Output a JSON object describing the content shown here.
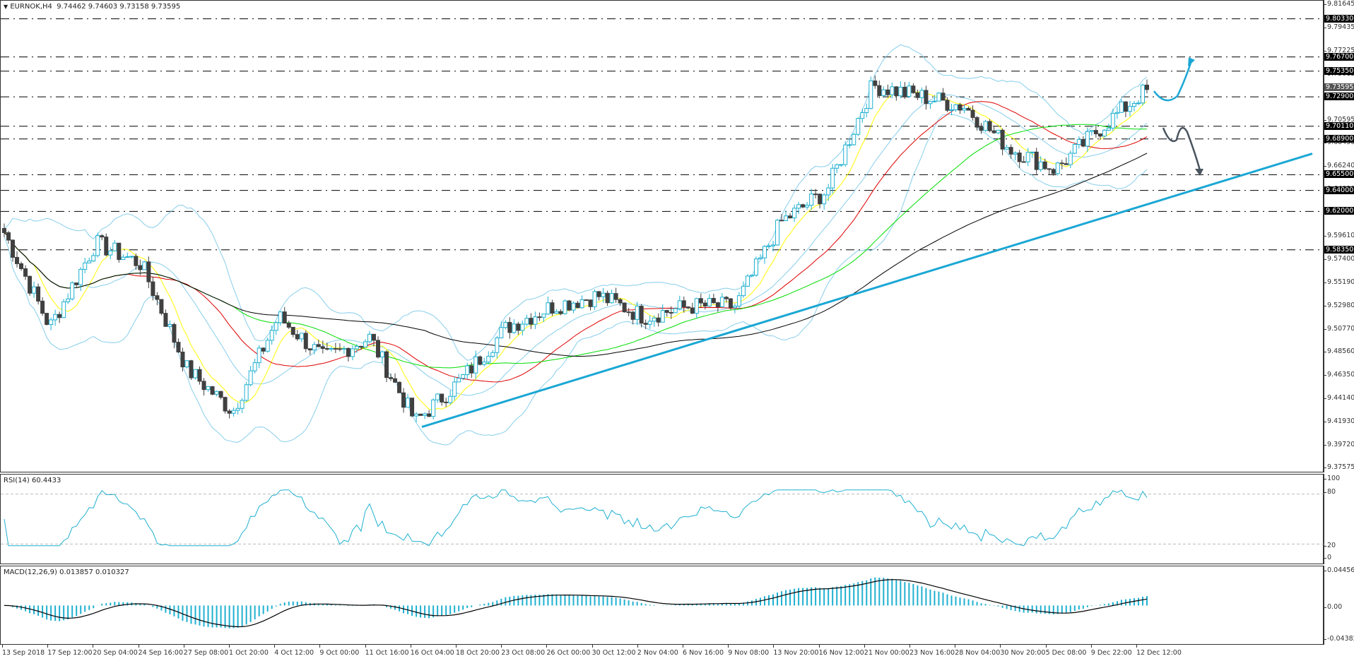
{
  "header": {
    "symbol": "EURNOK,H4",
    "ohlc": "9.74462 9.74603 9.73158 9.73595",
    "title_full": "EURNOK,H4  9.74462 9.74603 9.73158 9.73595"
  },
  "price_scale": {
    "ticks": [
      "9.81645",
      "9.79435",
      "9.77225",
      "9.75015",
      "9.70595",
      "9.68450",
      "9.66240",
      "9.64030",
      "9.61820",
      "9.59610",
      "9.57400",
      "9.55190",
      "9.52980",
      "9.50770",
      "9.48560",
      "9.46350",
      "9.44140",
      "9.41930",
      "9.39720",
      "9.37575"
    ],
    "levels": [
      "9.80330",
      "9.76700",
      "9.75350",
      "9.72900",
      "9.70110",
      "9.68900",
      "9.65500",
      "9.64000",
      "9.62000",
      "9.58350"
    ],
    "current_price": "9.73595"
  },
  "rsi": {
    "label": "RSI(14) 60.4433",
    "scale": [
      "100",
      "80",
      "20",
      "0"
    ]
  },
  "macd": {
    "label": "MACD(12,26,9) 0.013857 0.010327",
    "scale": [
      "0.044566",
      "0.00",
      "-0.043829"
    ]
  },
  "time_axis": [
    "13 Sep 2018",
    "17 Sep 12:00",
    "20 Sep 04:00",
    "24 Sep 16:00",
    "27 Sep 08:00",
    "1 Oct 20:00",
    "4 Oct 12:00",
    "9 Oct 00:00",
    "11 Oct 16:00",
    "16 Oct 04:00",
    "18 Oct 20:00",
    "23 Oct 08:00",
    "26 Oct 00:00",
    "30 Oct 12:00",
    "2 Nov 04:00",
    "6 Nov 16:00",
    "9 Nov 08:00",
    "13 Nov 20:00",
    "16 Nov 12:00",
    "21 Nov 00:00",
    "23 Nov 16:00",
    "28 Nov 04:00",
    "30 Nov 20:00",
    "5 Dec 08:00",
    "9 Dec 22:00",
    "12 Dec 12:00"
  ],
  "colors": {
    "bull": "#1fb0d0",
    "bear": "#404040",
    "ma_fast": "#ffff00",
    "ma_mid": "#e00000",
    "ma_slow": "#00dd00",
    "ma_long": "#000000",
    "bollinger": "#87ceeb",
    "trendline": "#1aa7d4",
    "arrow_up": "#1aa7d4",
    "arrow_down": "#4a5560"
  },
  "chart_data": {
    "type": "candlestick",
    "title": "EURNOK,H4",
    "symbol": "EURNOK",
    "timeframe": "H4",
    "last_bar": {
      "open": 9.74462,
      "high": 9.74603,
      "low": 9.73158,
      "close": 9.73595
    },
    "ylim": [
      9.37575,
      9.81645
    ],
    "x_range": [
      "13 Sep 2018",
      "12 Dec 12:00"
    ],
    "horizontal_levels": [
      9.8033,
      9.767,
      9.7535,
      9.729,
      9.7011,
      9.689,
      9.655,
      9.64,
      9.62,
      9.5835
    ],
    "trendline": {
      "from": {
        "x": "16 Oct 04:00",
        "y": 9.415
      },
      "to": {
        "x": "beyond 12 Dec",
        "y": 9.675
      }
    },
    "approx_path": [
      {
        "x": "13 Sep 2018",
        "close": 9.6
      },
      {
        "x": "17 Sep 12:00",
        "close": 9.51
      },
      {
        "x": "20 Sep 04:00",
        "close": 9.59
      },
      {
        "x": "24 Sep 16:00",
        "close": 9.57
      },
      {
        "x": "27 Sep 08:00",
        "close": 9.47
      },
      {
        "x": "1 Oct 20:00",
        "close": 9.43
      },
      {
        "x": "4 Oct 12:00",
        "close": 9.52
      },
      {
        "x": "9 Oct 00:00",
        "close": 9.48
      },
      {
        "x": "11 Oct 16:00",
        "close": 9.5
      },
      {
        "x": "16 Oct 04:00",
        "close": 9.42
      },
      {
        "x": "18 Oct 20:00",
        "close": 9.46
      },
      {
        "x": "23 Oct 08:00",
        "close": 9.51
      },
      {
        "x": "26 Oct 00:00",
        "close": 9.53
      },
      {
        "x": "30 Oct 12:00",
        "close": 9.54
      },
      {
        "x": "2 Nov 04:00",
        "close": 9.52
      },
      {
        "x": "6 Nov 16:00",
        "close": 9.53
      },
      {
        "x": "9 Nov 08:00",
        "close": 9.53
      },
      {
        "x": "13 Nov 20:00",
        "close": 9.61
      },
      {
        "x": "16 Nov 12:00",
        "close": 9.64
      },
      {
        "x": "21 Nov 00:00",
        "close": 9.74
      },
      {
        "x": "23 Nov 16:00",
        "close": 9.73
      },
      {
        "x": "28 Nov 04:00",
        "close": 9.72
      },
      {
        "x": "30 Nov 20:00",
        "close": 9.68
      },
      {
        "x": "5 Dec 08:00",
        "close": 9.66
      },
      {
        "x": "9 Dec 22:00",
        "close": 9.7
      },
      {
        "x": "12 Dec 12:00",
        "close": 9.736
      }
    ],
    "indicators": {
      "moving_averages": [
        "yellow (fast)",
        "red",
        "green",
        "black (long)"
      ],
      "bollinger_bands": "light blue",
      "rsi": {
        "period": 14,
        "value": 60.4433,
        "levels": [
          20,
          80
        ],
        "ylim": [
          0,
          100
        ]
      },
      "macd": {
        "params": [
          12,
          26,
          9
        ],
        "macd": 0.013857,
        "signal": 0.010327,
        "ylim": [
          -0.043829,
          0.044566
        ]
      }
    },
    "annotations": [
      "Upward curved arrow toward 9.767 from ~9.729",
      "Downward zig-zag arrow from ~9.70 toward trendline ~9.655"
    ],
    "grid": false
  }
}
